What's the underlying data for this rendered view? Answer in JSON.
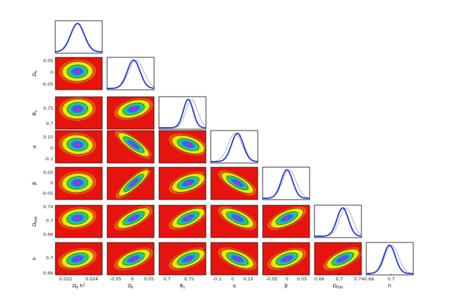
{
  "chart_data": {
    "type": "triangle-plot",
    "parameters": [
      {
        "key": "obh2",
        "label": "Ω",
        "sub": "b",
        "suffix": " h",
        "sup": "2",
        "range": [
          0.0212,
          0.0248
        ],
        "ticks": [
          0.022,
          0.024
        ],
        "tick_labels": [
          "0.022",
          "0.024"
        ]
      },
      {
        "key": "ok",
        "label": "Ω",
        "sub": "k",
        "range": [
          -0.075,
          0.065
        ],
        "ticks": [
          -0.05,
          0,
          0.05
        ],
        "tick_labels": [
          "-0.05",
          "0",
          "0.05"
        ]
      },
      {
        "key": "bs",
        "label": "B",
        "sub": "s",
        "range": [
          0.682,
          0.788
        ],
        "ticks": [
          0.7,
          0.75
        ],
        "tick_labels": [
          "0.7",
          "0.75"
        ]
      },
      {
        "key": "alpha",
        "label": "α",
        "range": [
          -0.14,
          0.16
        ],
        "ticks": [
          -0.1,
          0,
          0.1
        ],
        "tick_labels": [
          "-0.1",
          "0",
          "0.10"
        ]
      },
      {
        "key": "beta",
        "label": "β",
        "range": [
          -0.08,
          0.075
        ],
        "ticks": [
          -0.05,
          0,
          0.05
        ],
        "tick_labels": [
          "-0.05",
          "0",
          "0.05"
        ]
      },
      {
        "key": "ode",
        "label": "Ω",
        "sub": "0de",
        "range": [
          0.65,
          0.745
        ],
        "ticks": [
          0.66,
          0.7,
          0.74
        ],
        "tick_labels": [
          "0.66",
          "0.7",
          "0.74"
        ]
      },
      {
        "key": "h",
        "label": "h",
        "range": [
          0.655,
          0.74
        ],
        "ticks": [
          0.66,
          0.7
        ],
        "tick_labels": [
          "0.66",
          "0.7"
        ]
      }
    ],
    "marginals": [
      {
        "param": "obh2",
        "peak": 0.0229,
        "width": 0.00052,
        "dotted_peak": 0.0229,
        "dotted_width": 0.00055
      },
      {
        "param": "ok",
        "peak": 0.004,
        "width": 0.019,
        "dotted_peak": 0.012,
        "dotted_width": 0.022
      },
      {
        "param": "bs",
        "peak": 0.748,
        "width": 0.011,
        "dotted_peak": 0.756,
        "dotted_width": 0.013
      },
      {
        "param": "alpha",
        "peak": 0.03,
        "width": 0.038,
        "dotted_peak": 0.015,
        "dotted_width": 0.044
      },
      {
        "param": "beta",
        "peak": 0.0,
        "width": 0.019,
        "dotted_peak": 0.008,
        "dotted_width": 0.022
      },
      {
        "param": "ode",
        "peak": 0.707,
        "width": 0.0115,
        "dotted_peak": 0.714,
        "dotted_width": 0.013
      },
      {
        "param": "h",
        "peak": 0.697,
        "width": 0.0105,
        "dotted_peak": 0.701,
        "dotted_width": 0.012
      }
    ],
    "correlations": [
      {
        "row": "ok",
        "col": "obh2",
        "rho": 0.05
      },
      {
        "row": "bs",
        "col": "obh2",
        "rho": 0.05
      },
      {
        "row": "bs",
        "col": "ok",
        "rho": 0.35
      },
      {
        "row": "alpha",
        "col": "obh2",
        "rho": -0.1
      },
      {
        "row": "alpha",
        "col": "ok",
        "rho": -0.8
      },
      {
        "row": "alpha",
        "col": "bs",
        "rho": -0.4
      },
      {
        "row": "beta",
        "col": "obh2",
        "rho": 0.1
      },
      {
        "row": "beta",
        "col": "ok",
        "rho": 0.9
      },
      {
        "row": "beta",
        "col": "bs",
        "rho": 0.45
      },
      {
        "row": "beta",
        "col": "alpha",
        "rho": -0.65
      },
      {
        "row": "ode",
        "col": "obh2",
        "rho": 0.2
      },
      {
        "row": "ode",
        "col": "ok",
        "rho": 0.6
      },
      {
        "row": "ode",
        "col": "bs",
        "rho": 0.55
      },
      {
        "row": "ode",
        "col": "alpha",
        "rho": -0.55
      },
      {
        "row": "ode",
        "col": "beta",
        "rho": 0.55
      },
      {
        "row": "h",
        "col": "obh2",
        "rho": 0.3
      },
      {
        "row": "h",
        "col": "ok",
        "rho": 0.5
      },
      {
        "row": "h",
        "col": "bs",
        "rho": 0.5
      },
      {
        "row": "h",
        "col": "alpha",
        "rho": -0.5
      },
      {
        "row": "h",
        "col": "beta",
        "rho": 0.45
      },
      {
        "row": "h",
        "col": "ode",
        "rho": 0.55
      }
    ],
    "colors": {
      "curve": "#2b45d8",
      "dotted": "#3a3a3a",
      "density_background": "#e5140f",
      "density_ramp": [
        "#ee2a12",
        "#f76a10",
        "#ffb400",
        "#fff200",
        "#b4ea1e",
        "#35d64a",
        "#18c6b4",
        "#1f8be6",
        "#4b4ee8",
        "#9a3ee4",
        "#e0228e"
      ],
      "contour_dots": "#111111"
    }
  }
}
